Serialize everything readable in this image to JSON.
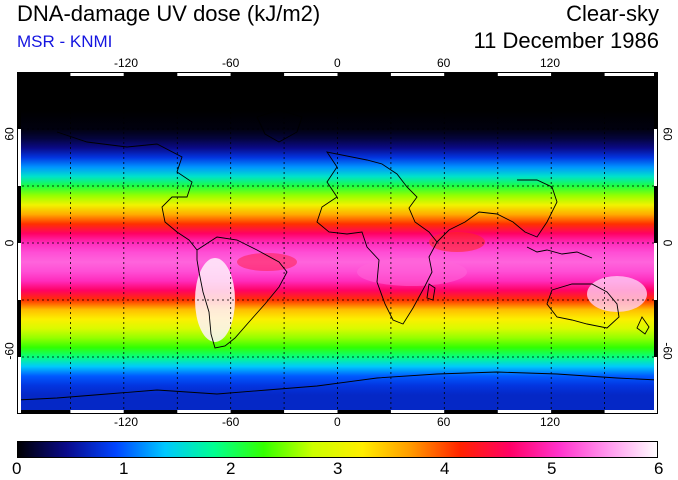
{
  "header": {
    "title": "DNA-damage UV dose (kJ/m2)",
    "source": "MSR - KNMI",
    "sky_condition": "Clear-sky",
    "date": "11 December 1986"
  },
  "map": {
    "projection": "equirectangular",
    "lon_range": [
      -180,
      180
    ],
    "lat_range": [
      -90,
      90
    ],
    "lon_ticks": [
      "-120",
      "-60",
      "0",
      "60",
      "120"
    ],
    "lat_ticks": [
      "60",
      "0",
      "-60"
    ],
    "gridline_spacing_deg": 30
  },
  "colorbar": {
    "labels": [
      "0",
      "1",
      "2",
      "3",
      "4",
      "5",
      "6"
    ],
    "min": 0,
    "max": 6,
    "colors": [
      "#000000",
      "#0a0a8a",
      "#0044ff",
      "#00c8ff",
      "#00ff90",
      "#33ff00",
      "#ccff00",
      "#ffee00",
      "#ff9900",
      "#ff2200",
      "#ff0066",
      "#ff33cc",
      "#ff99ee",
      "#ffffff"
    ]
  },
  "chart_data": {
    "type": "heatmap",
    "title": "DNA-damage UV dose (kJ/m2)",
    "units": "kJ/m2",
    "color_range": [
      0,
      6
    ],
    "zonal_profile": {
      "latitude": [
        90,
        70,
        60,
        55,
        50,
        45,
        40,
        35,
        30,
        25,
        20,
        15,
        10,
        5,
        0,
        -5,
        -10,
        -15,
        -20,
        -25,
        -30,
        -35,
        -40,
        -45,
        -50,
        -55,
        -60,
        -65,
        -70,
        -75,
        -80,
        -90
      ],
      "dose": [
        0,
        0,
        0.05,
        0.2,
        0.45,
        0.8,
        1.2,
        1.6,
        2.1,
        2.6,
        3.1,
        3.6,
        4.1,
        4.6,
        5.0,
        5.2,
        5.3,
        5.2,
        5.0,
        4.6,
        4.1,
        3.5,
        3.2,
        2.9,
        2.6,
        2.3,
        1.9,
        1.4,
        1.0,
        0.8,
        0.7,
        0.7
      ]
    }
  }
}
